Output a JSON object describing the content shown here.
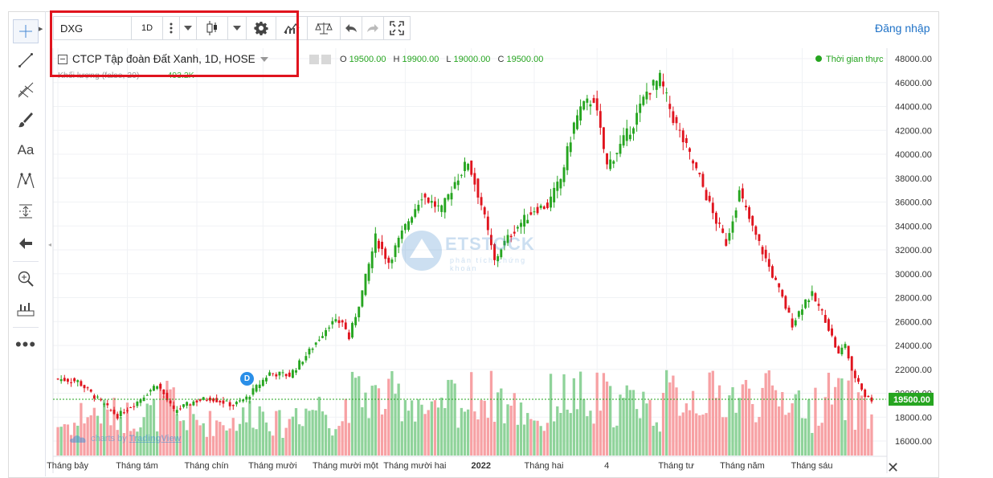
{
  "toolbar": {
    "symbol": "DXG",
    "interval": "1D",
    "login_label": "Đăng nhập"
  },
  "legend": {
    "title": "CTCP Tập đoàn Đất Xanh, 1D, HOSE",
    "open_label": "O",
    "open": "19500.00",
    "high_label": "H",
    "high": "19900.00",
    "low_label": "L",
    "low": "19000.00",
    "close_label": "C",
    "close": "19500.00",
    "volume_title": "Khối lượng (false, 20)",
    "volume_value": "493.2K",
    "realtime": "Thời gian thực"
  },
  "left_tools": [
    "crosshair-icon",
    "trend-line-icon",
    "fib-icon",
    "brush-icon",
    "text-icon",
    "pattern-icon",
    "measure-icon",
    "arrow-back-icon",
    "zoom-icon",
    "ruler-icon",
    "more-icon"
  ],
  "watermark": {
    "brand": "ETSTOCK",
    "sub": "phân tích chứng khoán"
  },
  "tv_logo": {
    "prefix": "charts by",
    "brand": "TradingView"
  },
  "event_marker": "D",
  "chart_data": {
    "type": "candlestick",
    "title": "CTCP Tập đoàn Đất Xanh, 1D, HOSE",
    "ylim": [
      14500,
      48800
    ],
    "y_ticks": [
      16000,
      18000,
      20000,
      22000,
      24000,
      26000,
      28000,
      30000,
      32000,
      34000,
      36000,
      38000,
      40000,
      42000,
      44000,
      46000,
      48000
    ],
    "y_tick_labels": [
      "16000.00",
      "18000.00",
      "20000.00",
      "22000.00",
      "24000.00",
      "26000.00",
      "28000.00",
      "30000.00",
      "32000.00",
      "34000.00",
      "36000.00",
      "38000.00",
      "40000.00",
      "42000.00",
      "44000.00",
      "46000.00",
      "48000.00"
    ],
    "x_labels": [
      "Tháng bảy",
      "Tháng tám",
      "Tháng chín",
      "Tháng mười",
      "Tháng mười một",
      "Tháng mười hai",
      "2022",
      "Tháng hai",
      "4",
      "Tháng tư",
      "Tháng năm",
      "Tháng sáu"
    ],
    "x_label_positions": [
      0,
      21,
      42,
      62,
      84,
      105,
      125,
      144,
      163,
      184,
      204,
      225
    ],
    "last_price": 19500,
    "last_price_label": "19500.00",
    "grid": true,
    "colors": {
      "up": "#26a520",
      "down": "#e0141e",
      "up_vol": "#8fd39a",
      "down_vol": "#f7a1a4"
    },
    "close_waypoints": [
      [
        0,
        21200
      ],
      [
        6,
        21000
      ],
      [
        10,
        20000
      ],
      [
        14,
        19000
      ],
      [
        18,
        18100
      ],
      [
        24,
        19300
      ],
      [
        30,
        20800
      ],
      [
        35,
        18500
      ],
      [
        41,
        19300
      ],
      [
        46,
        19600
      ],
      [
        53,
        19000
      ],
      [
        57,
        19600
      ],
      [
        60,
        20500
      ],
      [
        64,
        21700
      ],
      [
        70,
        21500
      ],
      [
        76,
        23500
      ],
      [
        82,
        25800
      ],
      [
        86,
        26000
      ],
      [
        88,
        24600
      ],
      [
        92,
        28500
      ],
      [
        96,
        33000
      ],
      [
        100,
        31000
      ],
      [
        106,
        34500
      ],
      [
        110,
        36600
      ],
      [
        116,
        35300
      ],
      [
        120,
        37700
      ],
      [
        124,
        39400
      ],
      [
        128,
        35800
      ],
      [
        132,
        31000
      ],
      [
        134,
        32200
      ],
      [
        138,
        33700
      ],
      [
        144,
        35400
      ],
      [
        148,
        35700
      ],
      [
        152,
        37900
      ],
      [
        156,
        42500
      ],
      [
        158,
        43800
      ],
      [
        162,
        44700
      ],
      [
        166,
        39000
      ],
      [
        170,
        40700
      ],
      [
        174,
        42600
      ],
      [
        178,
        45200
      ],
      [
        182,
        46300
      ],
      [
        186,
        43000
      ],
      [
        190,
        40500
      ],
      [
        194,
        38000
      ],
      [
        198,
        35000
      ],
      [
        202,
        32600
      ],
      [
        206,
        36800
      ],
      [
        210,
        33800
      ],
      [
        214,
        31200
      ],
      [
        218,
        28600
      ],
      [
        222,
        25800
      ],
      [
        226,
        27800
      ],
      [
        228,
        28200
      ],
      [
        232,
        26200
      ],
      [
        236,
        23200
      ],
      [
        238,
        24200
      ],
      [
        240,
        21700
      ],
      [
        242,
        21000
      ],
      [
        244,
        19800
      ],
      [
        246,
        19500
      ]
    ],
    "volume_note": "volume bars shown at chart bottom, colored by candle direction"
  }
}
